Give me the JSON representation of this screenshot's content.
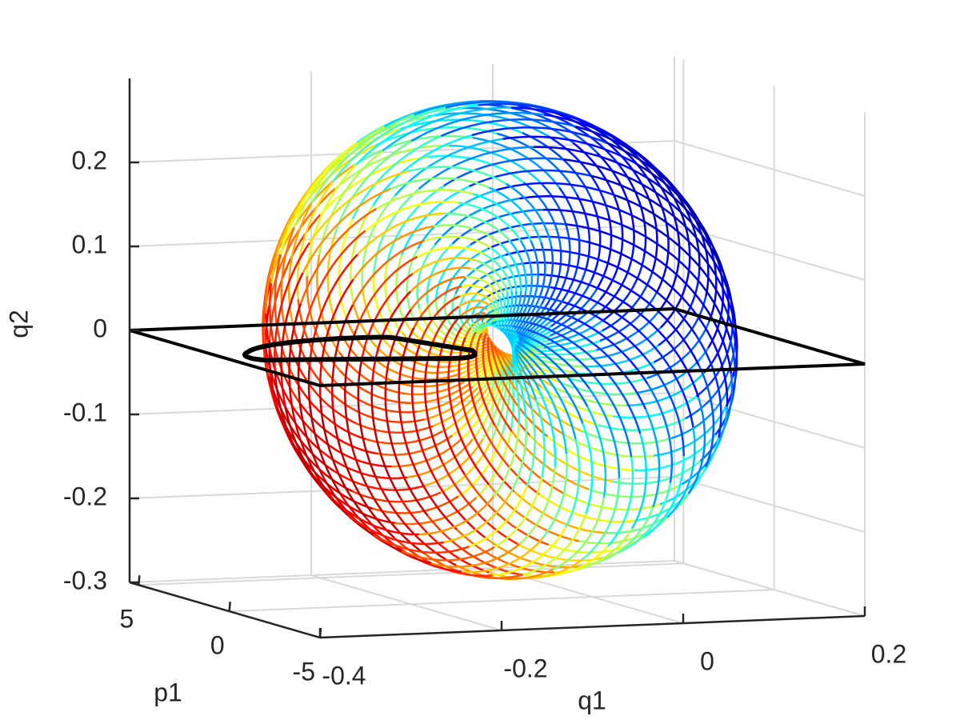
{
  "chart_data": {
    "type": "line3d",
    "xlabel": "q1",
    "ylabel": "p1",
    "zlabel": "q2",
    "xlim": [
      -0.4,
      0.2
    ],
    "ylim": [
      -5,
      5.5
    ],
    "zlim": [
      -0.3,
      0.3
    ],
    "xticks": [
      -0.4,
      -0.2,
      0,
      0.2
    ],
    "yticks": [
      -5,
      0,
      5
    ],
    "zticks": [
      -0.3,
      -0.2,
      -0.1,
      0,
      0.1,
      0.2
    ],
    "grid": true,
    "section_plane": {
      "z": 0,
      "color": "#000000"
    },
    "colormap": "jet"
  }
}
